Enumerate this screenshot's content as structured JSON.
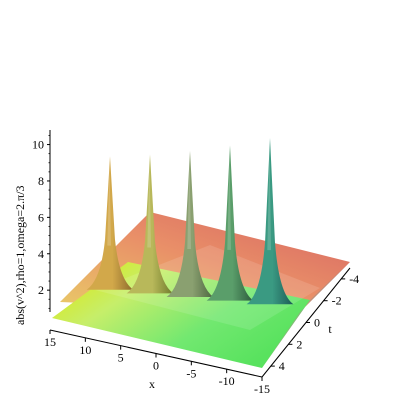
{
  "chart_data": {
    "type": "surface3d",
    "title": "",
    "xlabel": "x",
    "ylabel": "t",
    "zlabel": "abs(v^2),rho=1,omega=2.π/3",
    "xlim": [
      -15,
      15
    ],
    "tlim": [
      -5,
      5
    ],
    "zlim": [
      0.8,
      10.8
    ],
    "x_ticks": [
      "15",
      "10",
      "5",
      "0",
      "-5",
      "-10",
      "-15"
    ],
    "t_ticks": [
      "-4",
      "-2",
      "0",
      "2",
      "4"
    ],
    "z_ticks": [
      "2",
      "4",
      "6",
      "8",
      "10"
    ],
    "peaks": [
      {
        "x": 12,
        "t": 0,
        "z": 8.8
      },
      {
        "x": 6,
        "t": 0,
        "z": 9.1
      },
      {
        "x": 0,
        "t": 0,
        "z": 9.5
      },
      {
        "x": -6,
        "t": 0,
        "z": 10.0
      },
      {
        "x": -12,
        "t": 0,
        "z": 10.6
      }
    ],
    "base_level": 1.8,
    "colormap": [
      "#d4e000",
      "#c8f060",
      "#6de86d",
      "#e8b030",
      "#e84848"
    ],
    "grid": false,
    "legend": "none"
  }
}
